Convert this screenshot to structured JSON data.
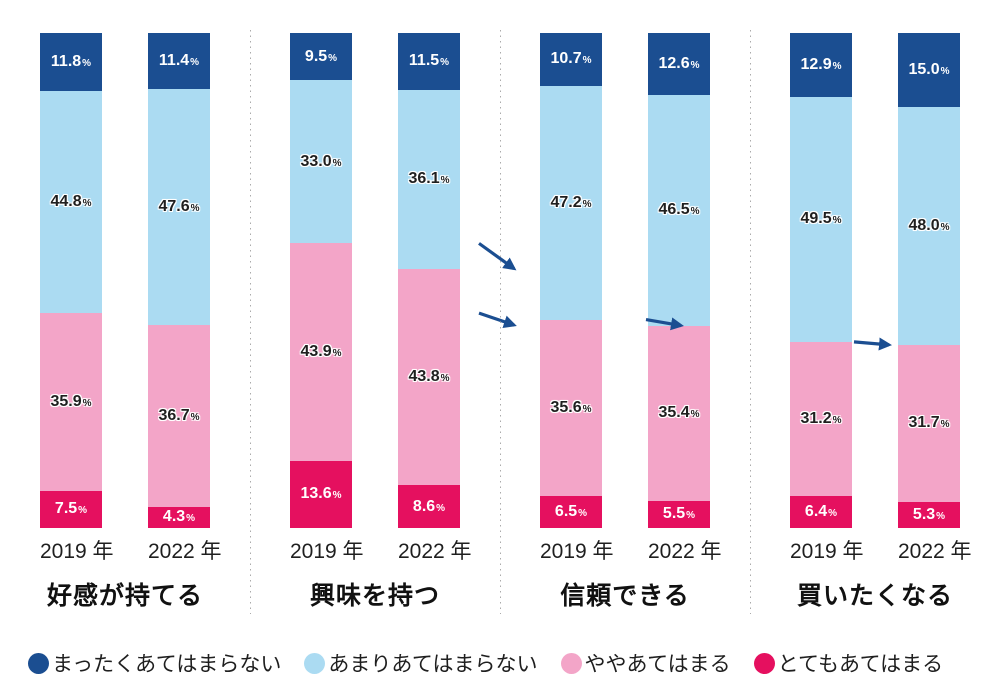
{
  "chart_data": {
    "type": "bar",
    "variant": "100-percent-stacked-column-pairs",
    "unit": "%",
    "bar_axis_range": [
      0,
      100
    ],
    "grid": false,
    "legend_position": "bottom",
    "series_top_to_bottom": [
      {
        "key": "not-apply-at-all",
        "name": "まったくあてはまらない",
        "color": "#1b4e91",
        "text_color": "#ffffff"
      },
      {
        "key": "not-really-apply",
        "name": "あまりあてはまらない",
        "color": "#abdbf2",
        "text_color": "#1f1f1f"
      },
      {
        "key": "somewhat-apply",
        "name": "ややあてはまる",
        "color": "#f3a5c8",
        "text_color": "#1f1f1f"
      },
      {
        "key": "very-much-apply",
        "name": "とてもあてはまる",
        "color": "#e5105f",
        "text_color": "#ffffff"
      }
    ],
    "arrow": {
      "color": "#1b4e91",
      "description": "arrow from 2019 bar to 2022 bar drawn at the boundary between あまりあてはまらない and ややあてはまる"
    },
    "groups": [
      {
        "title": "好感が持てる",
        "bars": [
          {
            "label": "2019 年",
            "values": [
              11.8,
              44.8,
              35.9,
              7.5
            ]
          },
          {
            "label": "2022 年",
            "values": [
              11.4,
              47.6,
              36.7,
              4.3
            ]
          }
        ]
      },
      {
        "title": "興味を持つ",
        "bars": [
          {
            "label": "2019 年",
            "values": [
              9.5,
              33.0,
              43.9,
              13.6
            ]
          },
          {
            "label": "2022 年",
            "values": [
              11.5,
              36.1,
              43.8,
              8.6
            ]
          }
        ]
      },
      {
        "title": "信頼できる",
        "bars": [
          {
            "label": "2019 年",
            "values": [
              10.7,
              47.2,
              35.6,
              6.5
            ]
          },
          {
            "label": "2022 年",
            "values": [
              12.6,
              46.5,
              35.4,
              5.5
            ]
          }
        ]
      },
      {
        "title": "買いたくなる",
        "bars": [
          {
            "label": "2019 年",
            "values": [
              12.9,
              49.5,
              31.2,
              6.4
            ]
          },
          {
            "label": "2022 年",
            "values": [
              15.0,
              48.0,
              31.7,
              5.3
            ]
          }
        ]
      }
    ],
    "legend": [
      "まったくあてはまらない",
      "あまりあてはまらない",
      "ややあてはまる",
      "とてもあてはまる"
    ]
  }
}
